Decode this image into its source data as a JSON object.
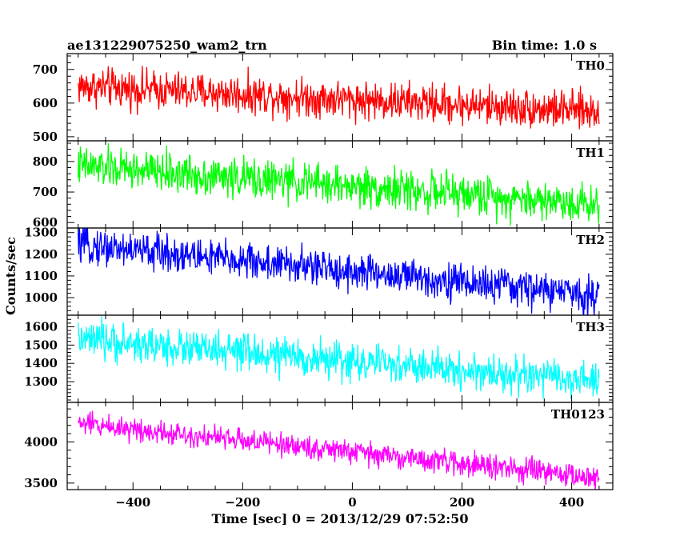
{
  "chart_data": {
    "type": "line",
    "title": "ae131229075250_wam2_trn",
    "subtitle": "Bin time: 1.0 s",
    "xlabel": "Time [sec] 0 = 2013/12/29 07:52:50",
    "ylabel": "Counts/sec",
    "xlim": [
      -520,
      475
    ],
    "x_range": [
      -500,
      450
    ],
    "xticks": [
      -400,
      -200,
      0,
      200,
      400
    ],
    "xtick_labels": [
      "−400",
      "−200",
      "0",
      "200",
      "400"
    ],
    "bin_time_s": 1.0,
    "series": [
      {
        "name": "TH0",
        "color": "#ff0000",
        "ylim": [
          495,
          740
        ],
        "yticks": [
          500,
          600,
          700
        ],
        "start": 650,
        "end": 575,
        "noise": 28,
        "x": [
          -500,
          -400,
          -300,
          -200,
          -100,
          0,
          100,
          200,
          300,
          400,
          450
        ],
        "y": [
          650,
          643,
          635,
          628,
          620,
          612,
          605,
          597,
          590,
          580,
          575
        ]
      },
      {
        "name": "TH1",
        "color": "#00ff00",
        "ylim": [
          590,
          860
        ],
        "yticks": [
          600,
          700,
          800
        ],
        "start": 785,
        "end": 660,
        "noise": 32,
        "x": [
          -500,
          -400,
          -300,
          -200,
          -100,
          0,
          100,
          200,
          300,
          400,
          450
        ],
        "y": [
          785,
          772,
          758,
          745,
          731,
          718,
          705,
          692,
          679,
          667,
          660
        ]
      },
      {
        "name": "TH2",
        "color": "#0000ff",
        "ylim": [
          930,
          1310
        ],
        "yticks": [
          1000,
          1100,
          1200,
          1300
        ],
        "start": 1245,
        "end": 1010,
        "noise": 42,
        "x": [
          -500,
          -400,
          -300,
          -200,
          -100,
          0,
          100,
          200,
          300,
          400,
          450
        ],
        "y": [
          1245,
          1220,
          1195,
          1170,
          1145,
          1120,
          1095,
          1070,
          1045,
          1022,
          1010
        ]
      },
      {
        "name": "TH3",
        "color": "#00ffff",
        "ylim": [
          1200,
          1650
        ],
        "yticks": [
          1300,
          1400,
          1500,
          1600
        ],
        "start": 1530,
        "end": 1300,
        "noise": 50,
        "x": [
          -500,
          -400,
          -300,
          -200,
          -100,
          0,
          100,
          200,
          300,
          400,
          450
        ],
        "y": [
          1530,
          1505,
          1481,
          1457,
          1433,
          1409,
          1384,
          1360,
          1336,
          1312,
          1300
        ]
      },
      {
        "name": "TH0123",
        "color": "#ff00ff",
        "ylim": [
          3450,
          4450
        ],
        "yticks": [
          3500,
          4000
        ],
        "start": 4230,
        "end": 3560,
        "noise": 70,
        "x": [
          -500,
          -400,
          -300,
          -200,
          -100,
          0,
          100,
          200,
          300,
          400,
          450
        ],
        "y": [
          4230,
          4160,
          4090,
          4019,
          3948,
          3877,
          3806,
          3735,
          3664,
          3595,
          3560
        ]
      }
    ]
  }
}
